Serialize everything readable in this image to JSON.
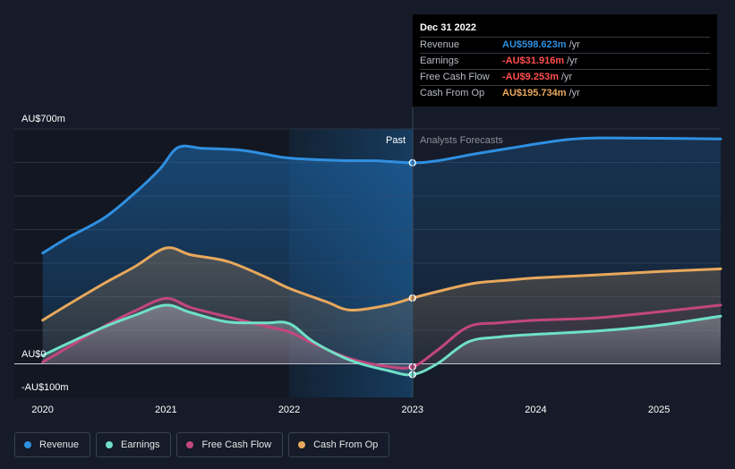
{
  "chart_data": {
    "type": "area",
    "y_axis": {
      "top_label": "AU$700m",
      "zero_label": "AU$0",
      "bottom_label": "-AU$100m",
      "ylim": [
        -100,
        700
      ]
    },
    "x_axis": {
      "ticks": [
        "2020",
        "2021",
        "2022",
        "2023",
        "2024",
        "2025"
      ],
      "tick_values": [
        2020,
        2021,
        2022,
        2023,
        2024,
        2025
      ],
      "xlim": [
        2019.77,
        2025.5
      ]
    },
    "divider": {
      "x": 2023.0,
      "past_label": "Past",
      "forecast_label": "Analysts Forecasts"
    },
    "series": [
      {
        "name": "Revenue",
        "color": "#2f8fe0",
        "x": [
          2020.0,
          2020.2,
          2020.5,
          2020.75,
          2020.95,
          2021.1,
          2021.3,
          2021.6,
          2021.8,
          2022.0,
          2022.4,
          2022.7,
          2023.0,
          2023.2,
          2023.5,
          2023.8,
          2024.0,
          2024.25,
          2024.5,
          2025.0,
          2025.5
        ],
        "y": [
          330,
          375,
          435,
          510,
          580,
          645,
          642,
          637,
          625,
          613,
          606,
          605,
          599,
          605,
          625,
          643,
          655,
          668,
          673,
          672,
          670
        ]
      },
      {
        "name": "Earnings",
        "color": "#6fe0c8",
        "x": [
          2020.0,
          2020.2,
          2020.5,
          2020.75,
          2021.0,
          2021.2,
          2021.5,
          2021.8,
          2022.0,
          2022.2,
          2022.5,
          2022.8,
          2023.0,
          2023.2,
          2023.45,
          2023.7,
          2024.0,
          2024.5,
          2025.0,
          2025.5
        ],
        "y": [
          25,
          60,
          110,
          145,
          175,
          153,
          125,
          122,
          120,
          65,
          10,
          -20,
          -32,
          0,
          65,
          80,
          88,
          98,
          115,
          142
        ]
      },
      {
        "name": "Free Cash Flow",
        "color": "#c2477d",
        "x": [
          2020.0,
          2020.2,
          2020.5,
          2020.75,
          2021.0,
          2021.2,
          2021.5,
          2021.8,
          2022.0,
          2022.2,
          2022.5,
          2022.8,
          2023.0,
          2023.2,
          2023.45,
          2023.7,
          2024.0,
          2024.5,
          2025.0,
          2025.5
        ],
        "y": [
          5,
          48,
          112,
          158,
          195,
          168,
          140,
          113,
          95,
          60,
          15,
          -8,
          -9,
          40,
          110,
          122,
          130,
          137,
          155,
          175
        ]
      },
      {
        "name": "Cash From Op",
        "color": "#e8a85c",
        "x": [
          2020.0,
          2020.2,
          2020.5,
          2020.75,
          2021.0,
          2021.2,
          2021.5,
          2021.8,
          2022.0,
          2022.3,
          2022.5,
          2022.8,
          2023.0,
          2023.2,
          2023.5,
          2023.8,
          2024.0,
          2024.5,
          2025.0,
          2025.5
        ],
        "y": [
          130,
          175,
          240,
          290,
          345,
          325,
          305,
          260,
          225,
          185,
          160,
          175,
          196,
          215,
          240,
          250,
          256,
          265,
          275,
          283
        ]
      }
    ],
    "tooltip": {
      "date": "Dec 31 2022",
      "rows": [
        {
          "name": "Revenue",
          "value": "AU$598.623m",
          "unit": "/yr",
          "color": "#2f8fe0"
        },
        {
          "name": "Earnings",
          "value": "-AU$31.916m",
          "unit": "/yr",
          "color": "#ff4d4d"
        },
        {
          "name": "Free Cash Flow",
          "value": "-AU$9.253m",
          "unit": "/yr",
          "color": "#ff4d4d"
        },
        {
          "name": "Cash From Op",
          "value": "AU$195.734m",
          "unit": "/yr",
          "color": "#e8a85c"
        }
      ]
    },
    "legend": [
      "Revenue",
      "Earnings",
      "Free Cash Flow",
      "Cash From Op"
    ],
    "grid": true
  }
}
